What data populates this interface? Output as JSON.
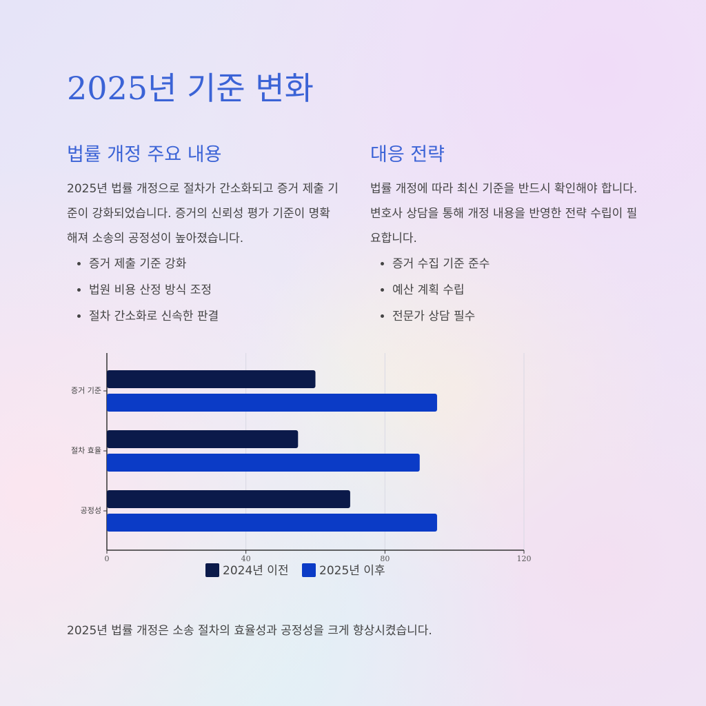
{
  "title": "2025년 기준 변화",
  "left": {
    "heading": "법률 개정 주요 내용",
    "paragraph": "2025년 법률 개정으로 절차가 간소화되고 증거 제출 기준이 강화되었습니다. 증거의 신뢰성 평가 기준이 명확해져 소송의 공정성이 높아졌습니다.",
    "bullets": [
      "증거 제출 기준 강화",
      "법원 비용 산정 방식 조정",
      "절차 간소화로 신속한 판결"
    ]
  },
  "right": {
    "heading": "대응 전략",
    "paragraph": "법률 개정에 따라 최신 기준을 반드시 확인해야 합니다. 변호사 상담을 통해 개정 내용을 반영한 전략 수립이 필요합니다.",
    "bullets": [
      "증거 수집 기준 준수",
      "예산 계획 수립",
      "전문가 상담 필수"
    ]
  },
  "chart_data": {
    "type": "bar",
    "orientation": "horizontal",
    "categories": [
      "증거 기준",
      "절차 효율",
      "공정성"
    ],
    "series": [
      {
        "name": "2024년 이전",
        "color": "#0b1a4a",
        "values": [
          60,
          55,
          70
        ]
      },
      {
        "name": "2025년 이후",
        "color": "#0b3bc6",
        "values": [
          95,
          90,
          95
        ]
      }
    ],
    "xlim": [
      0,
      120
    ],
    "xticks": [
      0,
      40,
      80,
      120
    ],
    "grid": true,
    "legend": "bottom"
  },
  "footer": "2025년 법률 개정은 소송 절차의 효율성과 공정성을 크게 향상시켰습니다."
}
